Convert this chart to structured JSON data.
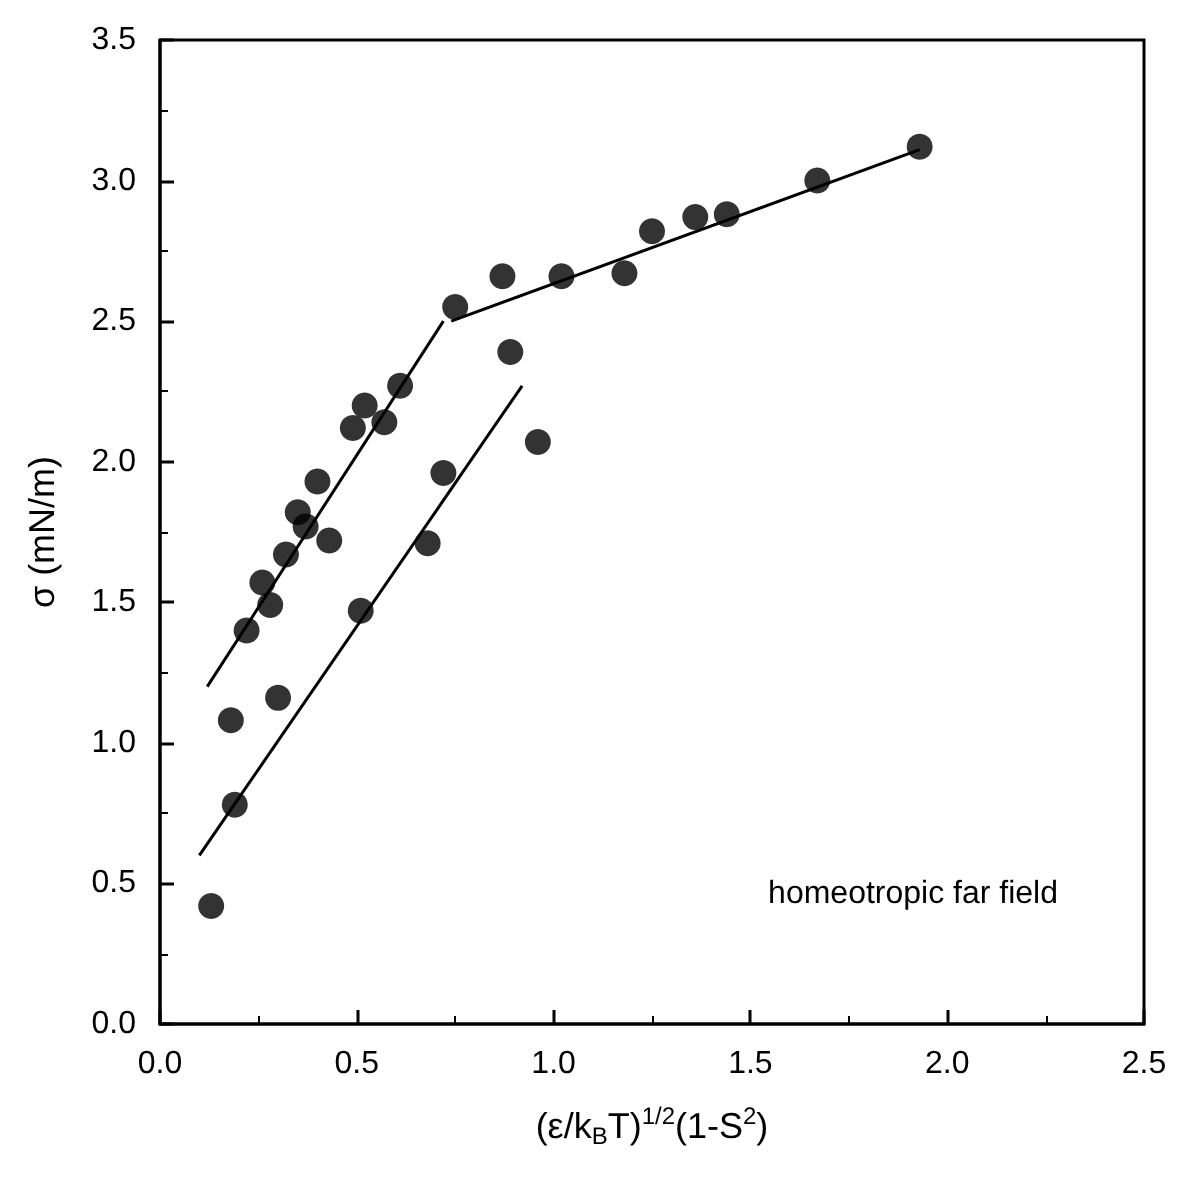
{
  "chart_data": {
    "type": "scatter",
    "xlabel": "(ε/k$_{B}$T)$^{1/2}$(1-S$^{2}$)",
    "ylabel": "σ (mN/m)",
    "annotations": [
      "homeotropic far field"
    ],
    "xlim": [
      0,
      2.5
    ],
    "xticks": [
      {
        "value": 0,
        "label": "0.0"
      },
      {
        "value": 0.5,
        "label": "0.5"
      },
      {
        "value": 1,
        "label": "1.0"
      },
      {
        "value": 1.5,
        "label": "1.5"
      },
      {
        "value": 2,
        "label": "2.0"
      },
      {
        "value": 2.5,
        "label": "2.5"
      }
    ],
    "ylim": [
      0,
      3.5
    ],
    "yticks": [
      {
        "value": 0,
        "label": "0.0"
      },
      {
        "value": 0.5,
        "label": "0.5"
      },
      {
        "value": 1,
        "label": "1.0"
      },
      {
        "value": 1.5,
        "label": "1.5"
      },
      {
        "value": 2,
        "label": "2.0"
      },
      {
        "value": 2.5,
        "label": "2.5"
      },
      {
        "value": 3,
        "label": "3.0"
      },
      {
        "value": 3.5,
        "label": "3.5"
      }
    ],
    "grid": false,
    "series": [
      {
        "marker": "circle",
        "color": "#000000",
        "x": [
          0.13,
          0.19,
          0.18,
          0.22,
          0.26,
          0.28,
          0.3,
          0.32,
          0.35,
          0.37,
          0.4,
          0.43,
          0.49,
          0.51,
          0.52,
          0.57,
          0.61,
          0.68,
          0.72,
          0.75,
          0.87,
          0.89,
          0.96,
          1.02,
          1.18,
          1.25,
          1.36,
          1.44,
          1.67,
          1.93
        ],
        "values": [
          0.42,
          0.78,
          1.08,
          1.4,
          1.57,
          1.49,
          1.16,
          1.67,
          1.82,
          1.77,
          1.93,
          1.72,
          2.12,
          1.47,
          2.2,
          2.14,
          2.27,
          1.71,
          1.96,
          2.55,
          2.66,
          2.39,
          2.07,
          2.66,
          2.67,
          2.82,
          2.87,
          2.88,
          3.0,
          3.12
        ]
      },
      {
        "type": "line",
        "marker": "none",
        "color": "#000000",
        "x": [
          0.12,
          0.72
        ],
        "values": [
          1.2,
          2.5
        ]
      },
      {
        "type": "line",
        "marker": "none",
        "color": "#000000",
        "x": [
          0.1,
          0.92
        ],
        "values": [
          0.6,
          2.27
        ]
      },
      {
        "type": "line",
        "marker": "none",
        "color": "#000000",
        "x": [
          0.74,
          1.93
        ],
        "values": [
          2.5,
          3.11
        ]
      }
    ]
  }
}
